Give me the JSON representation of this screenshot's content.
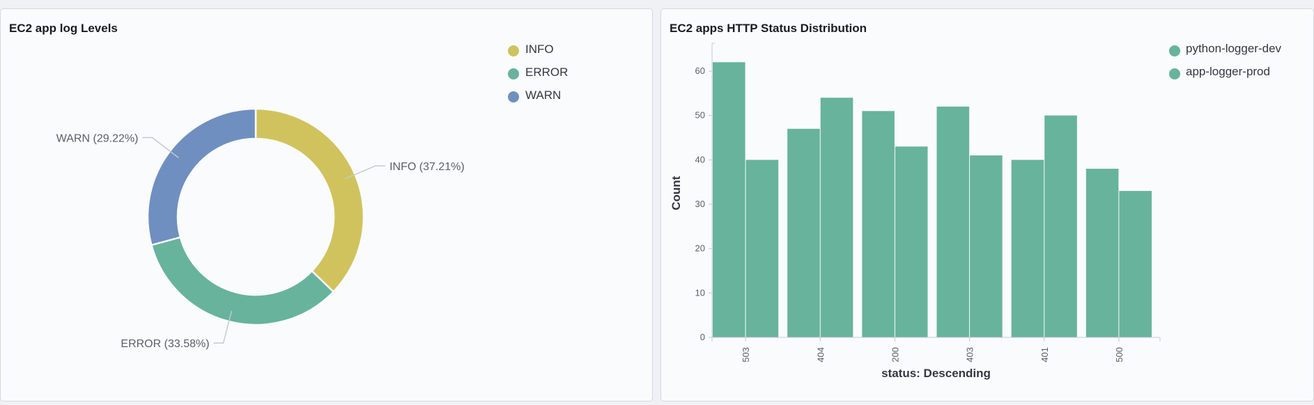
{
  "panels": {
    "left": {
      "title": "EC2 app log Levels"
    },
    "right": {
      "title": "EC2 apps HTTP Status Distribution"
    }
  },
  "colors": {
    "INFO": "#d0c35e",
    "ERROR": "#68b39b",
    "WARN": "#6f8fc0",
    "series": "#68b39b",
    "panel_bg": "#fafbfd"
  },
  "chart_data": [
    {
      "type": "pie",
      "donut": true,
      "title": "EC2 app log Levels",
      "legend": {
        "placement": "top-right",
        "entries": [
          "INFO",
          "ERROR",
          "WARN"
        ]
      },
      "slices": [
        {
          "label": "INFO",
          "percent": 37.21,
          "text": "INFO (37.21%)"
        },
        {
          "label": "ERROR",
          "percent": 33.58,
          "text": "ERROR (33.58%)"
        },
        {
          "label": "WARN",
          "percent": 29.22,
          "text": "WARN (29.22%)"
        }
      ]
    },
    {
      "type": "bar",
      "title": "EC2 apps HTTP Status Distribution",
      "xlabel": "status: Descending",
      "ylabel": "Count",
      "ylim": [
        0,
        65
      ],
      "yticks": [
        0,
        10,
        20,
        30,
        40,
        50,
        60
      ],
      "grid": false,
      "legend": {
        "placement": "top-right",
        "entries": [
          "python-logger-dev",
          "app-logger-prod"
        ]
      },
      "categories": [
        "503",
        "404",
        "200",
        "403",
        "401",
        "500"
      ],
      "series": [
        {
          "name": "python-logger-dev",
          "values": [
            62,
            47,
            51,
            52,
            40,
            38
          ]
        },
        {
          "name": "app-logger-prod",
          "values": [
            40,
            54,
            43,
            41,
            50,
            33
          ]
        }
      ]
    }
  ]
}
